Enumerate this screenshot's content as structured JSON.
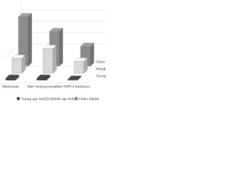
{
  "chart_data": {
    "type": "bar3d",
    "categories": [
      "Metformin",
      "Met+Sulfonylurea",
      "Met+DPP-4 Inhibitors"
    ],
    "series": [
      {
        "name": "Young age Adults",
        "color": "#3a3a3a",
        "values": [
          2,
          2,
          1
        ]
      },
      {
        "name": "Middle age Adults",
        "color": "#d9d9d9",
        "values": [
          15,
          25,
          12
        ]
      },
      {
        "name": "Older Adults",
        "color": "#8c8c8c",
        "values": [
          50,
          35,
          20
        ]
      }
    ],
    "ylim": [
      0,
      60
    ]
  }
}
